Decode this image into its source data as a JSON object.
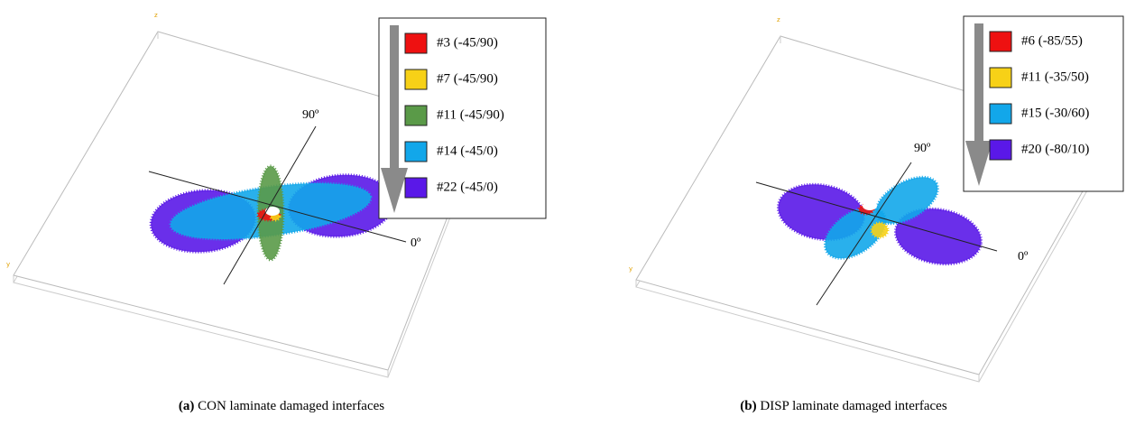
{
  "panels": [
    {
      "label": "(a)",
      "caption": "CON laminate damaged interfaces",
      "axis_90": "90º",
      "axis_0": "0º",
      "axis_z": "z",
      "axis_y": "y",
      "legend": [
        {
          "label": "#3 (-45/90)",
          "color": "#ee1111"
        },
        {
          "label": "#7 (-45/90)",
          "color": "#f7d117"
        },
        {
          "label": "#11 (-45/90)",
          "color": "#5a9a48"
        },
        {
          "label": "#14 (-45/0)",
          "color": "#12a7ea"
        },
        {
          "label": "#22 (-45/0)",
          "color": "#5a18e8"
        }
      ]
    },
    {
      "label": "(b)",
      "caption": "DISP laminate damaged interfaces",
      "axis_90": "90º",
      "axis_0": "0º",
      "axis_z": "z",
      "axis_y": "y",
      "legend": [
        {
          "label": "#6 (-85/55)",
          "color": "#ee1111"
        },
        {
          "label": "#11 (-35/50)",
          "color": "#f7d117"
        },
        {
          "label": "#15 (-30/60)",
          "color": "#12a7ea"
        },
        {
          "label": "#20 (-80/10)",
          "color": "#5a18e8"
        }
      ]
    }
  ]
}
